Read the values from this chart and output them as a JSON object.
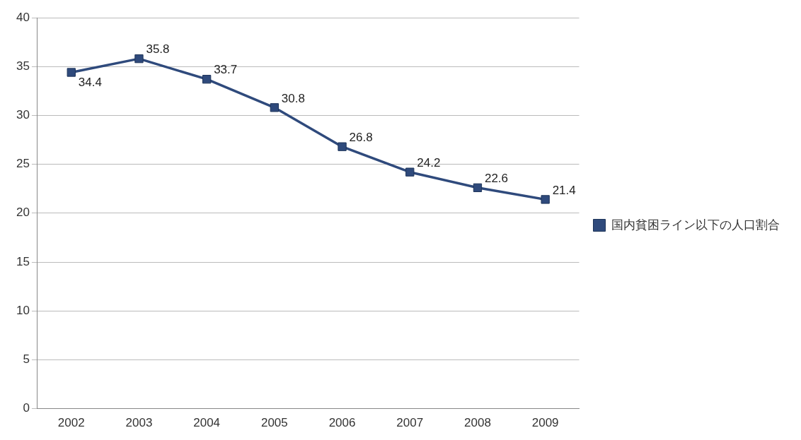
{
  "chart_data": {
    "type": "line",
    "categories": [
      "2002",
      "2003",
      "2004",
      "2005",
      "2006",
      "2007",
      "2008",
      "2009"
    ],
    "series": [
      {
        "name": "国内貧困ライン以下の人口割合",
        "color": "#2f4a7c",
        "values": [
          34.4,
          35.8,
          33.7,
          30.8,
          26.8,
          24.2,
          22.6,
          21.4
        ]
      }
    ],
    "ylim": [
      0,
      40
    ],
    "yticks": [
      0,
      5,
      10,
      15,
      20,
      25,
      30,
      35,
      40
    ],
    "grid": "y",
    "legend": "right",
    "marker": "square",
    "line_style": "solid",
    "data_labels": true
  }
}
